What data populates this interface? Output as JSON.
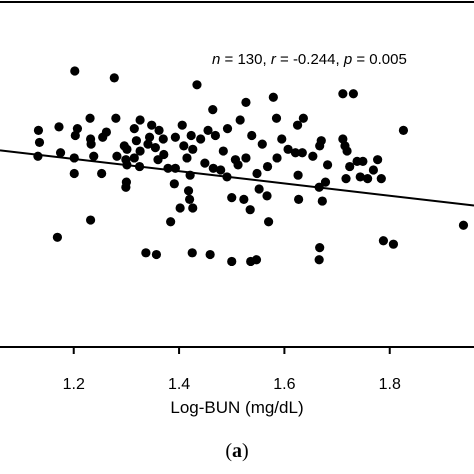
{
  "chart_data": {
    "type": "scatter",
    "xlabel": "Log-BUN (mg/dL)",
    "ylabel": "",
    "title": "",
    "panel_label": "a",
    "annotation": {
      "n_label": "n",
      "n_value": "130",
      "r_label": "r",
      "r_value": "-0.244",
      "p_label": "p",
      "p_value": "0.005"
    },
    "xlim": [
      1.06,
      1.96
    ],
    "ylim": [
      0.0,
      1.0
    ],
    "xticks": [
      "1.2",
      "1.4",
      "1.6",
      "1.8"
    ],
    "xtick_values": [
      1.2,
      1.4,
      1.6,
      1.8
    ],
    "grid": false,
    "regression_line": {
      "x": [
        1.06,
        1.96
      ],
      "y": [
        0.57,
        0.41
      ]
    },
    "points": [
      {
        "x": 1.202,
        "y": 0.8
      },
      {
        "x": 1.277,
        "y": 0.78
      },
      {
        "x": 1.434,
        "y": 0.76
      },
      {
        "x": 1.579,
        "y": 0.724
      },
      {
        "x": 1.711,
        "y": 0.734
      },
      {
        "x": 1.731,
        "y": 0.734
      },
      {
        "x": 1.527,
        "y": 0.709
      },
      {
        "x": 1.464,
        "y": 0.688
      },
      {
        "x": 1.231,
        "y": 0.663
      },
      {
        "x": 1.28,
        "y": 0.663
      },
      {
        "x": 1.326,
        "y": 0.658
      },
      {
        "x": 1.348,
        "y": 0.643
      },
      {
        "x": 1.406,
        "y": 0.643
      },
      {
        "x": 1.516,
        "y": 0.658
      },
      {
        "x": 1.585,
        "y": 0.663
      },
      {
        "x": 1.636,
        "y": 0.663
      },
      {
        "x": 1.133,
        "y": 0.628
      },
      {
        "x": 1.172,
        "y": 0.638
      },
      {
        "x": 1.207,
        "y": 0.633
      },
      {
        "x": 1.262,
        "y": 0.623
      },
      {
        "x": 1.315,
        "y": 0.633
      },
      {
        "x": 1.362,
        "y": 0.628
      },
      {
        "x": 1.455,
        "y": 0.628
      },
      {
        "x": 1.492,
        "y": 0.633
      },
      {
        "x": 1.625,
        "y": 0.643
      },
      {
        "x": 1.826,
        "y": 0.628
      },
      {
        "x": 1.203,
        "y": 0.613
      },
      {
        "x": 1.232,
        "y": 0.603
      },
      {
        "x": 1.255,
        "y": 0.608
      },
      {
        "x": 1.319,
        "y": 0.598
      },
      {
        "x": 1.344,
        "y": 0.608
      },
      {
        "x": 1.37,
        "y": 0.603
      },
      {
        "x": 1.393,
        "y": 0.608
      },
      {
        "x": 1.423,
        "y": 0.613
      },
      {
        "x": 1.441,
        "y": 0.603
      },
      {
        "x": 1.469,
        "y": 0.613
      },
      {
        "x": 1.538,
        "y": 0.613
      },
      {
        "x": 1.595,
        "y": 0.603
      },
      {
        "x": 1.67,
        "y": 0.598
      },
      {
        "x": 1.711,
        "y": 0.603
      },
      {
        "x": 1.135,
        "y": 0.593
      },
      {
        "x": 1.233,
        "y": 0.588
      },
      {
        "x": 1.296,
        "y": 0.583
      },
      {
        "x": 1.341,
        "y": 0.588
      },
      {
        "x": 1.355,
        "y": 0.578
      },
      {
        "x": 1.409,
        "y": 0.583
      },
      {
        "x": 1.558,
        "y": 0.588
      },
      {
        "x": 1.667,
        "y": 0.583
      },
      {
        "x": 1.715,
        "y": 0.583
      },
      {
        "x": 1.175,
        "y": 0.563
      },
      {
        "x": 1.301,
        "y": 0.573
      },
      {
        "x": 1.326,
        "y": 0.568
      },
      {
        "x": 1.371,
        "y": 0.558
      },
      {
        "x": 1.426,
        "y": 0.573
      },
      {
        "x": 1.484,
        "y": 0.568
      },
      {
        "x": 1.607,
        "y": 0.573
      },
      {
        "x": 1.621,
        "y": 0.563
      },
      {
        "x": 1.634,
        "y": 0.563
      },
      {
        "x": 1.719,
        "y": 0.568
      },
      {
        "x": 1.132,
        "y": 0.553
      },
      {
        "x": 1.201,
        "y": 0.548
      },
      {
        "x": 1.238,
        "y": 0.553
      },
      {
        "x": 1.282,
        "y": 0.553
      },
      {
        "x": 1.299,
        "y": 0.543
      },
      {
        "x": 1.315,
        "y": 0.548
      },
      {
        "x": 1.36,
        "y": 0.543
      },
      {
        "x": 1.415,
        "y": 0.548
      },
      {
        "x": 1.449,
        "y": 0.533
      },
      {
        "x": 1.507,
        "y": 0.543
      },
      {
        "x": 1.527,
        "y": 0.548
      },
      {
        "x": 1.586,
        "y": 0.548
      },
      {
        "x": 1.654,
        "y": 0.553
      },
      {
        "x": 1.738,
        "y": 0.538
      },
      {
        "x": 1.749,
        "y": 0.538
      },
      {
        "x": 1.777,
        "y": 0.543
      },
      {
        "x": 1.301,
        "y": 0.528
      },
      {
        "x": 1.325,
        "y": 0.523
      },
      {
        "x": 1.379,
        "y": 0.518
      },
      {
        "x": 1.393,
        "y": 0.518
      },
      {
        "x": 1.465,
        "y": 0.518
      },
      {
        "x": 1.479,
        "y": 0.513
      },
      {
        "x": 1.512,
        "y": 0.528
      },
      {
        "x": 1.568,
        "y": 0.523
      },
      {
        "x": 1.682,
        "y": 0.528
      },
      {
        "x": 1.724,
        "y": 0.523
      },
      {
        "x": 1.769,
        "y": 0.513
      },
      {
        "x": 1.201,
        "y": 0.503
      },
      {
        "x": 1.253,
        "y": 0.503
      },
      {
        "x": 1.421,
        "y": 0.498
      },
      {
        "x": 1.491,
        "y": 0.493
      },
      {
        "x": 1.548,
        "y": 0.503
      },
      {
        "x": 1.626,
        "y": 0.498
      },
      {
        "x": 1.717,
        "y": 0.488
      },
      {
        "x": 1.744,
        "y": 0.493
      },
      {
        "x": 1.758,
        "y": 0.488
      },
      {
        "x": 1.784,
        "y": 0.488
      },
      {
        "x": 1.3,
        "y": 0.478
      },
      {
        "x": 1.391,
        "y": 0.473
      },
      {
        "x": 1.678,
        "y": 0.478
      },
      {
        "x": 1.299,
        "y": 0.463
      },
      {
        "x": 1.418,
        "y": 0.453
      },
      {
        "x": 1.552,
        "y": 0.458
      },
      {
        "x": 1.666,
        "y": 0.463
      },
      {
        "x": 1.42,
        "y": 0.428
      },
      {
        "x": 1.5,
        "y": 0.433
      },
      {
        "x": 1.523,
        "y": 0.428
      },
      {
        "x": 1.567,
        "y": 0.438
      },
      {
        "x": 1.627,
        "y": 0.428
      },
      {
        "x": 1.672,
        "y": 0.423
      },
      {
        "x": 1.402,
        "y": 0.403
      },
      {
        "x": 1.426,
        "y": 0.403
      },
      {
        "x": 1.535,
        "y": 0.398
      },
      {
        "x": 1.232,
        "y": 0.368
      },
      {
        "x": 1.384,
        "y": 0.363
      },
      {
        "x": 1.57,
        "y": 0.363
      },
      {
        "x": 1.94,
        "y": 0.353
      },
      {
        "x": 1.169,
        "y": 0.318
      },
      {
        "x": 1.788,
        "y": 0.308
      },
      {
        "x": 1.807,
        "y": 0.298
      },
      {
        "x": 1.337,
        "y": 0.273
      },
      {
        "x": 1.357,
        "y": 0.268
      },
      {
        "x": 1.425,
        "y": 0.273
      },
      {
        "x": 1.459,
        "y": 0.268
      },
      {
        "x": 1.667,
        "y": 0.288
      },
      {
        "x": 1.5,
        "y": 0.248
      },
      {
        "x": 1.536,
        "y": 0.248
      },
      {
        "x": 1.547,
        "y": 0.253
      },
      {
        "x": 1.666,
        "y": 0.253
      }
    ]
  }
}
